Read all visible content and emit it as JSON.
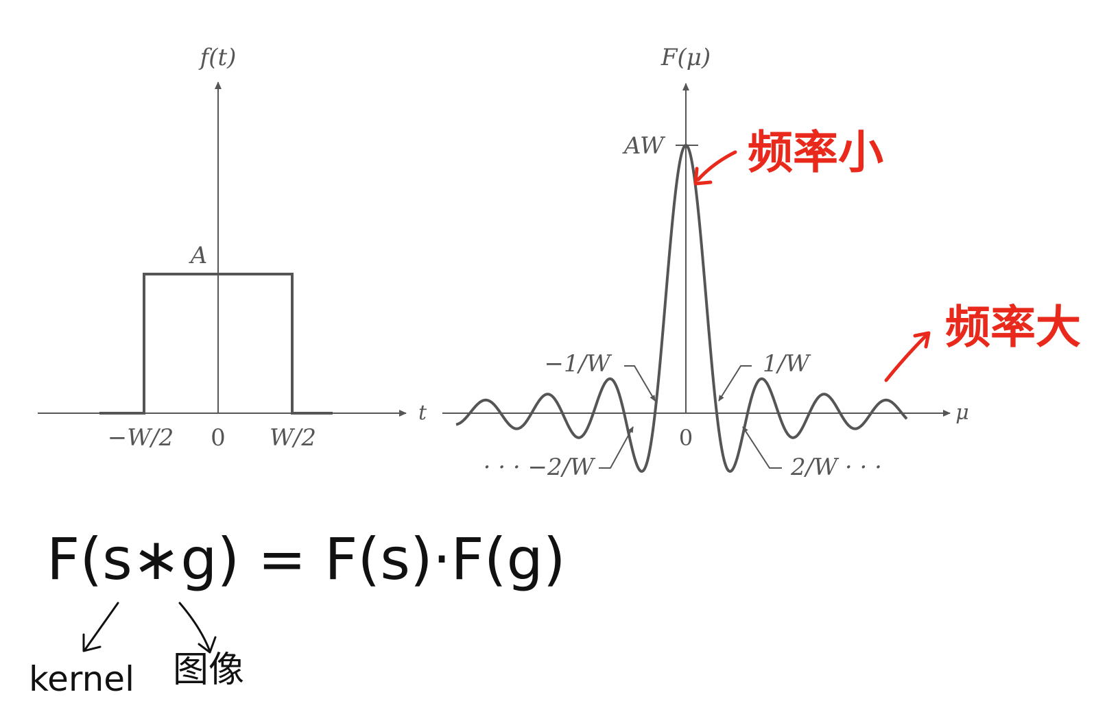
{
  "chart_data": [
    {
      "type": "line",
      "function": "box",
      "ylabel": "f(t)",
      "xlabel": "t",
      "amplitude_label": "A",
      "tick_labels": [
        "−W/2",
        "0",
        "W/2"
      ],
      "x": [
        -0.5,
        -0.5,
        0.5,
        0.5
      ],
      "y": [
        0,
        1,
        1,
        0
      ]
    },
    {
      "type": "line",
      "function": "sinc",
      "ylabel": "F(μ)",
      "xlabel": "μ",
      "peak_label": "AW",
      "origin_label": "0",
      "labels": {
        "m1": "−1/W",
        "p1": "1/W",
        "m2": "· · · −2/W",
        "p2": "2/W · · ·"
      }
    }
  ],
  "annotations": {
    "small": "频率小",
    "large": "频率大",
    "formula": "F(s∗g) = F(s)·F(g)",
    "kernel": "kernel",
    "image": "图像"
  },
  "colors": {
    "ink": "#555555",
    "red": "#e8291c",
    "hand": "#111111"
  }
}
